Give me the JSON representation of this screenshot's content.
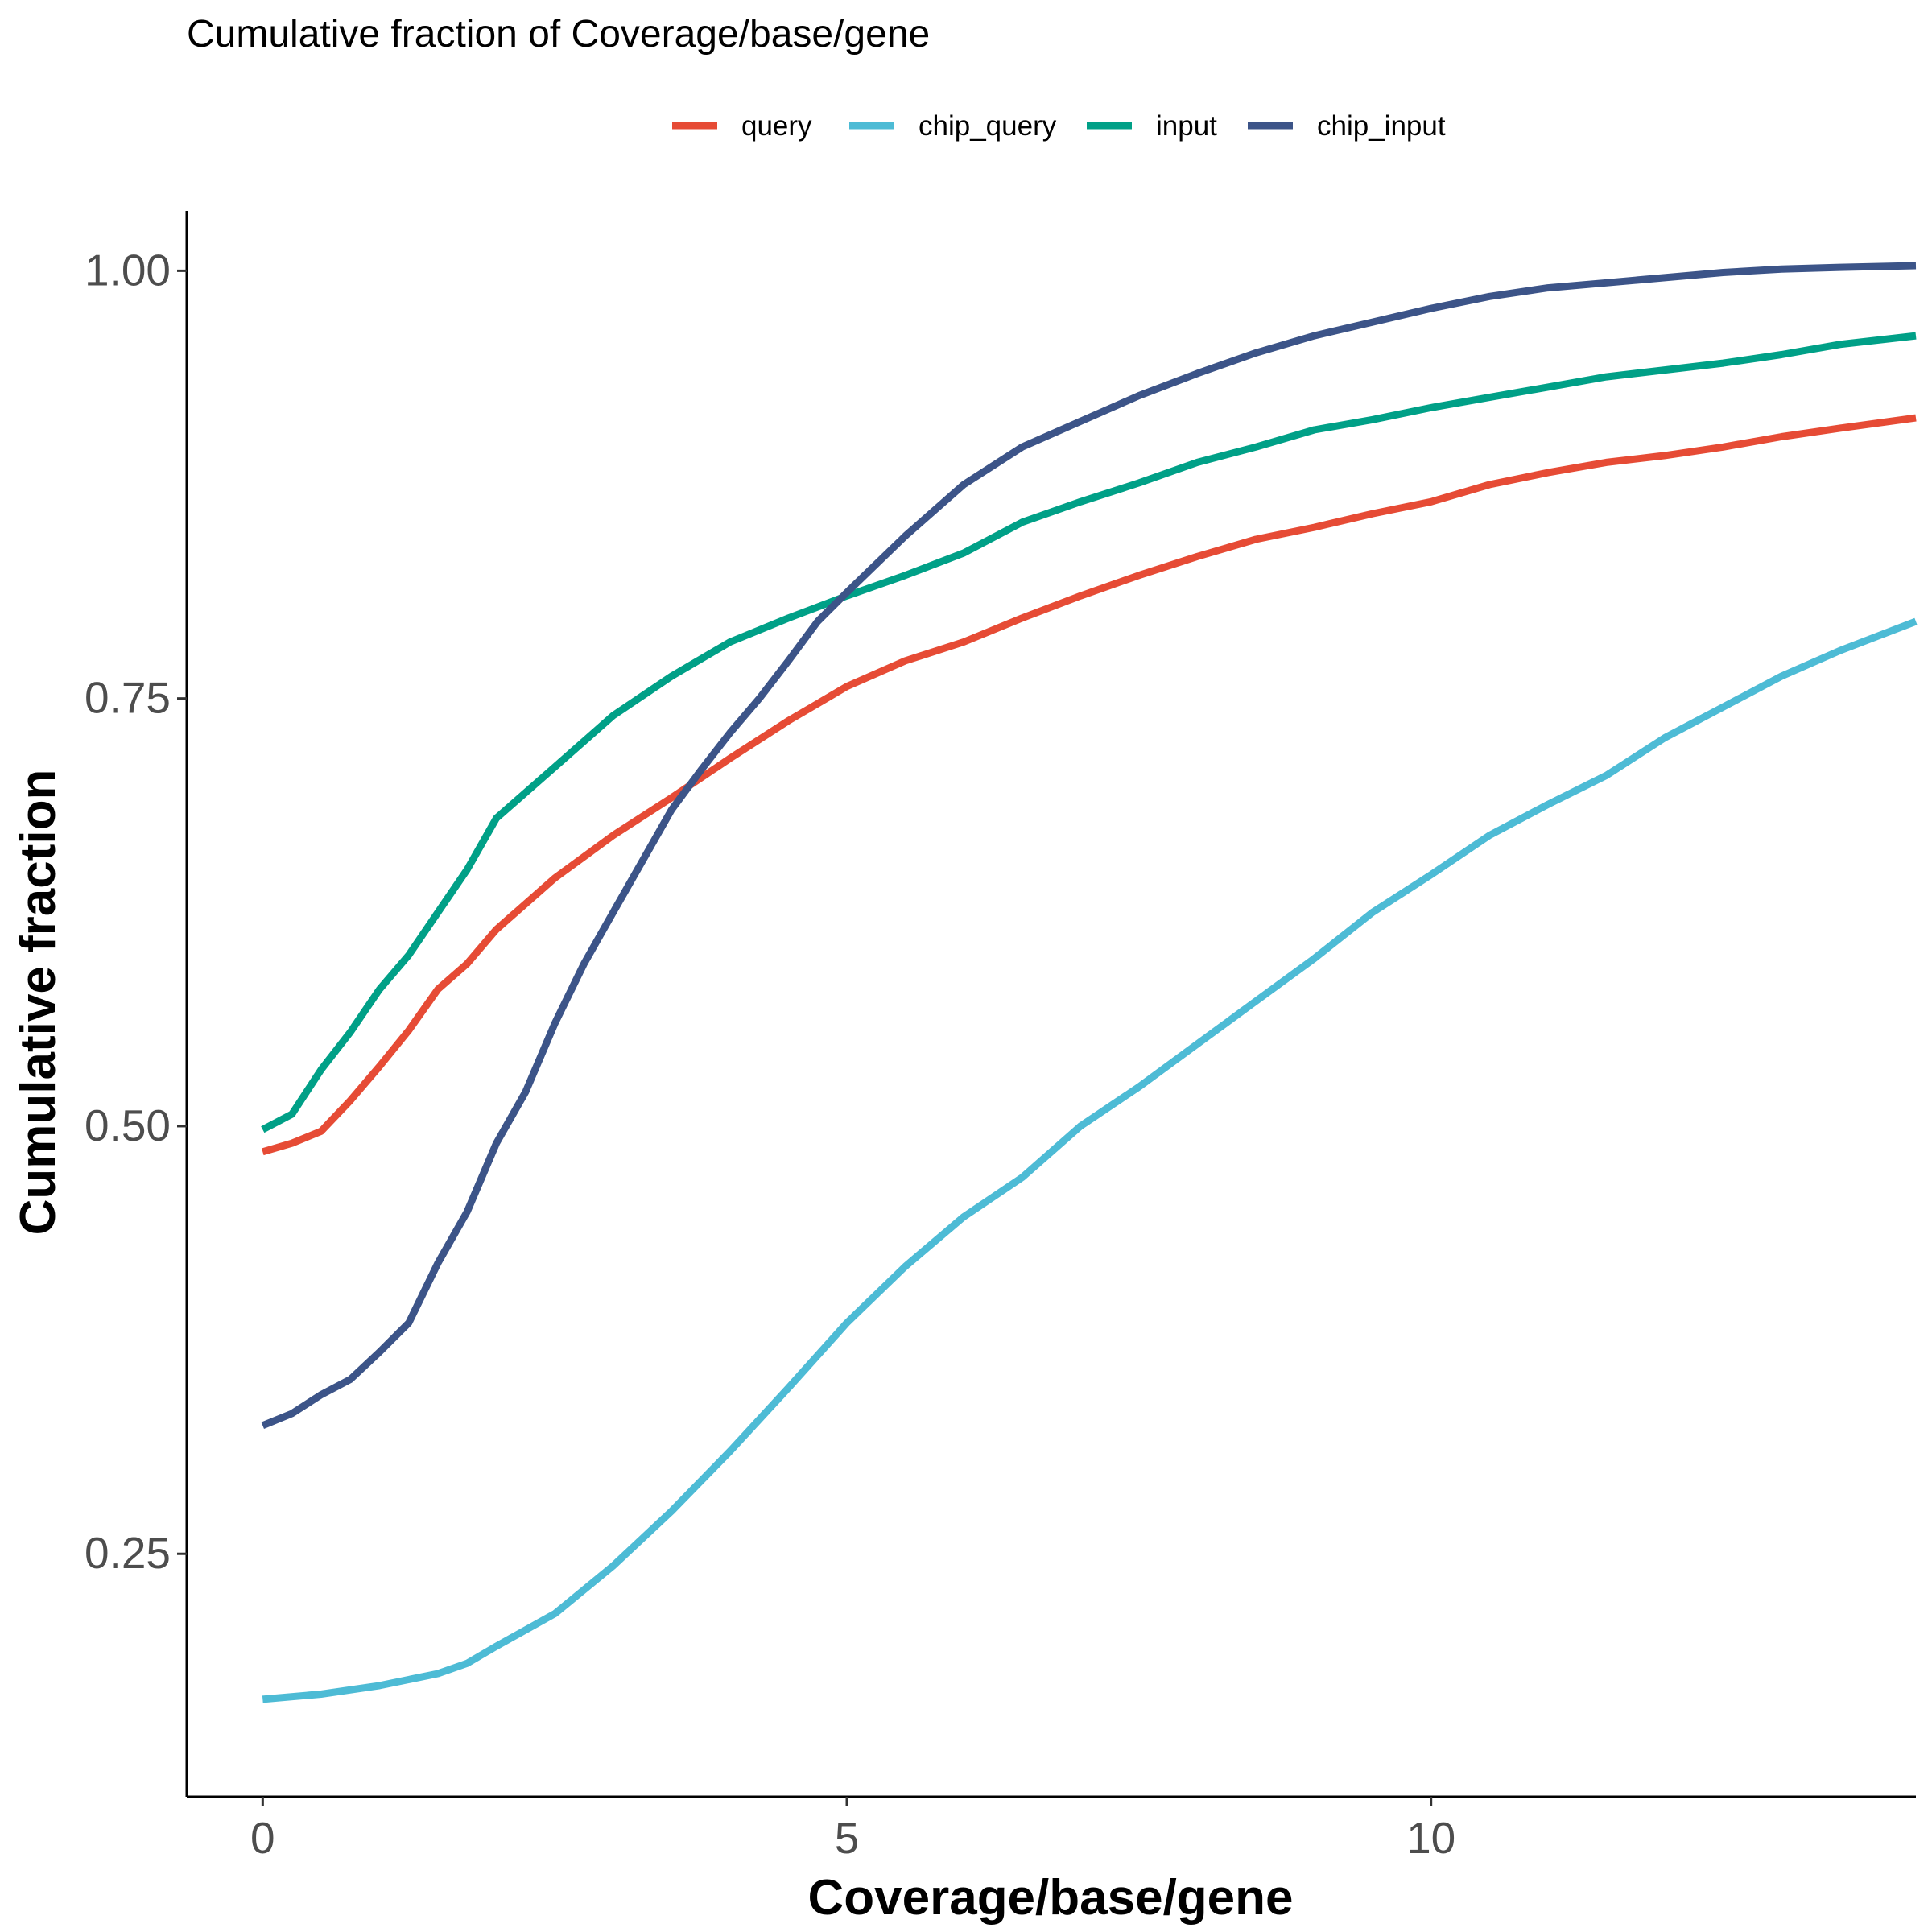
{
  "chart_data": {
    "type": "line",
    "title": "Cumulative fraction of  Coverage/base/gene",
    "xlabel": "Coverage/base/gene",
    "ylabel": "Cumulative fraction",
    "xlim": [
      -0.65,
      14.15
    ],
    "ylim": [
      0.108,
      1.035
    ],
    "x_ticks": [
      0,
      5,
      10
    ],
    "x_tick_labels": [
      "0",
      "5",
      "10"
    ],
    "y_ticks": [
      0.25,
      0.5,
      0.75,
      1.0
    ],
    "y_tick_labels": [
      "0.25",
      "0.50",
      "0.75",
      "1.00"
    ],
    "grid": false,
    "legend_position": "top",
    "series": [
      {
        "name": "query",
        "color": "#E64B35",
        "points": [
          [
            0,
            0.485
          ],
          [
            0.25,
            0.49
          ],
          [
            0.5,
            0.497
          ],
          [
            0.75,
            0.515
          ],
          [
            1.0,
            0.535
          ],
          [
            1.25,
            0.556
          ],
          [
            1.5,
            0.58
          ],
          [
            1.75,
            0.595
          ],
          [
            2.0,
            0.615
          ],
          [
            2.5,
            0.645
          ],
          [
            3.0,
            0.67
          ],
          [
            3.5,
            0.692
          ],
          [
            4.0,
            0.715
          ],
          [
            4.5,
            0.737
          ],
          [
            5.0,
            0.757
          ],
          [
            5.5,
            0.772
          ],
          [
            6.0,
            0.783
          ],
          [
            6.5,
            0.797
          ],
          [
            7.0,
            0.81
          ],
          [
            7.5,
            0.822
          ],
          [
            8.0,
            0.833
          ],
          [
            8.5,
            0.843
          ],
          [
            9.0,
            0.85
          ],
          [
            9.5,
            0.858
          ],
          [
            10.0,
            0.865
          ],
          [
            10.5,
            0.875
          ],
          [
            11.0,
            0.882
          ],
          [
            11.5,
            0.888
          ],
          [
            12.0,
            0.892
          ],
          [
            12.5,
            0.897
          ],
          [
            13.0,
            0.903
          ],
          [
            13.5,
            0.908
          ],
          [
            14.15,
            0.914
          ]
        ]
      },
      {
        "name": "chip_query",
        "color": "#4DBBD5",
        "points": [
          [
            0,
            0.165
          ],
          [
            0.5,
            0.168
          ],
          [
            1.0,
            0.173
          ],
          [
            1.5,
            0.18
          ],
          [
            1.75,
            0.186
          ],
          [
            2.0,
            0.196
          ],
          [
            2.5,
            0.215
          ],
          [
            3.0,
            0.243
          ],
          [
            3.5,
            0.275
          ],
          [
            4.0,
            0.31
          ],
          [
            4.5,
            0.347
          ],
          [
            5.0,
            0.385
          ],
          [
            5.5,
            0.418
          ],
          [
            6.0,
            0.447
          ],
          [
            6.5,
            0.47
          ],
          [
            7.0,
            0.5
          ],
          [
            7.5,
            0.523
          ],
          [
            8.0,
            0.548
          ],
          [
            8.5,
            0.573
          ],
          [
            9.0,
            0.598
          ],
          [
            9.5,
            0.625
          ],
          [
            10.0,
            0.647
          ],
          [
            10.5,
            0.67
          ],
          [
            11.0,
            0.688
          ],
          [
            11.5,
            0.705
          ],
          [
            12.0,
            0.727
          ],
          [
            12.5,
            0.745
          ],
          [
            13.0,
            0.763
          ],
          [
            13.5,
            0.778
          ],
          [
            14.15,
            0.795
          ]
        ]
      },
      {
        "name": "input",
        "color": "#00A087",
        "points": [
          [
            0,
            0.498
          ],
          [
            0.25,
            0.507
          ],
          [
            0.5,
            0.533
          ],
          [
            0.75,
            0.555
          ],
          [
            1.0,
            0.58
          ],
          [
            1.25,
            0.6
          ],
          [
            1.5,
            0.625
          ],
          [
            1.75,
            0.65
          ],
          [
            2.0,
            0.68
          ],
          [
            2.5,
            0.71
          ],
          [
            3.0,
            0.74
          ],
          [
            3.5,
            0.763
          ],
          [
            4.0,
            0.783
          ],
          [
            4.5,
            0.797
          ],
          [
            5.0,
            0.81
          ],
          [
            5.5,
            0.822
          ],
          [
            6.0,
            0.835
          ],
          [
            6.5,
            0.853
          ],
          [
            7.0,
            0.865
          ],
          [
            7.5,
            0.876
          ],
          [
            8.0,
            0.888
          ],
          [
            8.5,
            0.897
          ],
          [
            9.0,
            0.907
          ],
          [
            9.5,
            0.913
          ],
          [
            10.0,
            0.92
          ],
          [
            10.5,
            0.926
          ],
          [
            11.0,
            0.932
          ],
          [
            11.5,
            0.938
          ],
          [
            12.0,
            0.942
          ],
          [
            12.5,
            0.946
          ],
          [
            13.0,
            0.951
          ],
          [
            13.5,
            0.957
          ],
          [
            14.15,
            0.962
          ]
        ]
      },
      {
        "name": "chip_input",
        "color": "#3C5488",
        "points": [
          [
            0,
            0.325
          ],
          [
            0.25,
            0.332
          ],
          [
            0.5,
            0.343
          ],
          [
            0.75,
            0.352
          ],
          [
            1.0,
            0.368
          ],
          [
            1.25,
            0.385
          ],
          [
            1.5,
            0.42
          ],
          [
            1.75,
            0.45
          ],
          [
            2.0,
            0.49
          ],
          [
            2.25,
            0.52
          ],
          [
            2.5,
            0.56
          ],
          [
            2.75,
            0.595
          ],
          [
            3.0,
            0.625
          ],
          [
            3.25,
            0.655
          ],
          [
            3.5,
            0.685
          ],
          [
            3.75,
            0.708
          ],
          [
            4.0,
            0.73
          ],
          [
            4.25,
            0.75
          ],
          [
            4.5,
            0.772
          ],
          [
            4.75,
            0.795
          ],
          [
            5.0,
            0.812
          ],
          [
            5.5,
            0.845
          ],
          [
            6.0,
            0.875
          ],
          [
            6.5,
            0.897
          ],
          [
            7.0,
            0.912
          ],
          [
            7.5,
            0.927
          ],
          [
            8.0,
            0.94
          ],
          [
            8.5,
            0.952
          ],
          [
            9.0,
            0.962
          ],
          [
            9.5,
            0.97
          ],
          [
            10.0,
            0.978
          ],
          [
            10.5,
            0.985
          ],
          [
            11.0,
            0.99
          ],
          [
            11.5,
            0.993
          ],
          [
            12.0,
            0.996
          ],
          [
            12.5,
            0.999
          ],
          [
            13.0,
            1.001
          ],
          [
            13.5,
            1.002
          ],
          [
            14.15,
            1.003
          ]
        ]
      }
    ]
  }
}
